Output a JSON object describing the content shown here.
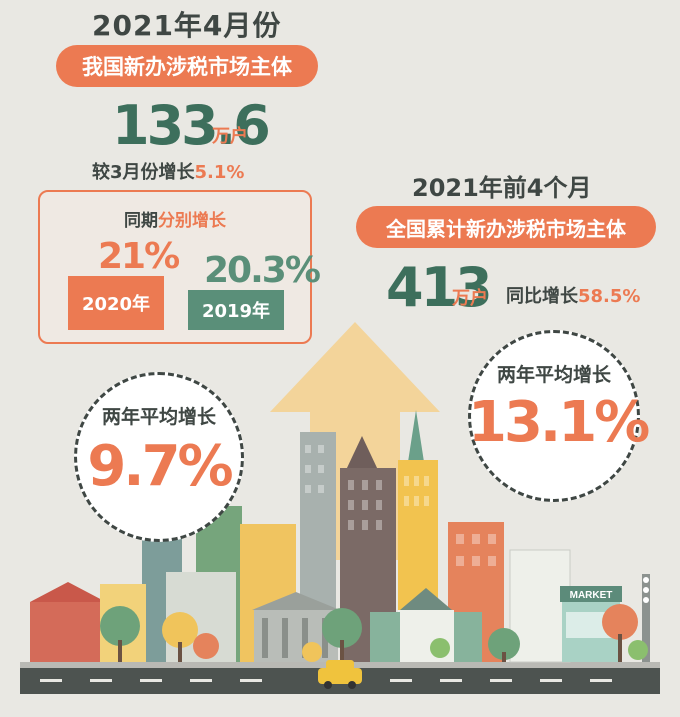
{
  "april": {
    "title": "2021年4月份",
    "banner": "我国新办涉税市场主体",
    "value": "133.6",
    "unit": "万户",
    "compare_prefix": "较3月份增长",
    "compare_value": "5.1%"
  },
  "same_period": {
    "title_prefix": "同期",
    "title_highlight": "分别增长",
    "items": [
      {
        "year": "2020年",
        "growth": "21%"
      },
      {
        "year": "2019年",
        "growth": "20.3%"
      }
    ]
  },
  "left_circle": {
    "label": "两年平均增长",
    "value": "9.7%"
  },
  "first_four_months": {
    "title": "2021年前4个月",
    "banner": "全国累计新办涉税市场主体",
    "value": "413",
    "unit": "万户",
    "yoy_prefix": "同比增长",
    "yoy_value": "58.5%"
  },
  "right_circle": {
    "label": "两年平均增长",
    "value": "13.1%"
  },
  "scene": {
    "market_sign": "MARKET"
  },
  "colors": {
    "accent": "#ec7a52",
    "green": "#5a8f79",
    "dark": "#3f4744",
    "background": "#e9e8e3"
  }
}
